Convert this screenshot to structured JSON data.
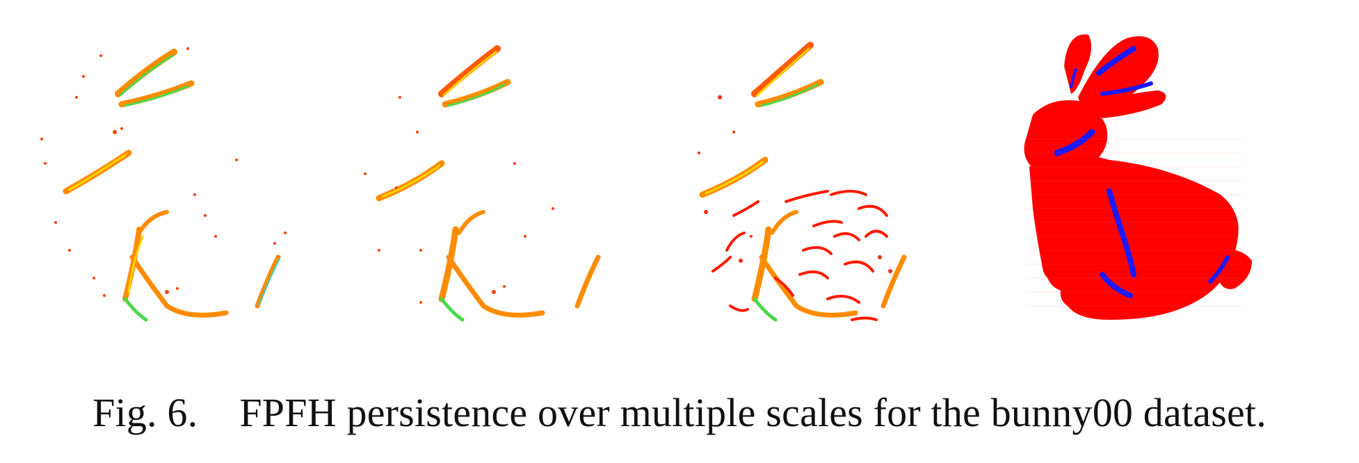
{
  "figure": {
    "label": "Fig. 6.",
    "caption_text": "FPFH persistence over multiple scales for the bunny00 dataset.",
    "panels": [
      {
        "name": "scale-1-persistent-points",
        "kind": "sparse"
      },
      {
        "name": "scale-2-persistent-points",
        "kind": "sparse"
      },
      {
        "name": "scale-3-persistent-points",
        "kind": "dense-sparse"
      },
      {
        "name": "full-bunny-point-cloud",
        "kind": "full"
      }
    ],
    "colors": {
      "hot": "#ff2a00",
      "warm": "#ff8c00",
      "yellow": "#ffd400",
      "green": "#4cd84c",
      "cyan": "#33cccc",
      "surface": "#ff0000",
      "persistent": "#1a1aff"
    }
  }
}
